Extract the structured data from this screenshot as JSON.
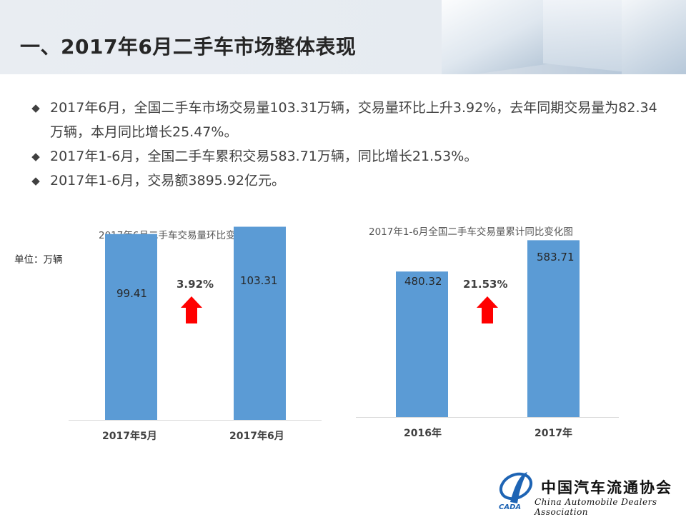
{
  "header": {
    "title": "一、2017年6月二手车市场整体表现"
  },
  "bullets": [
    {
      "text": "2017年6月，全国二手车市场交易量103.31万辆，交易量环比上升3.92%，去年同期交易量为82.34万辆，本月同比增长25.47%。"
    },
    {
      "text": "2017年1-6月，全国二手车累积交易583.71万辆，同比增长21.53%。"
    },
    {
      "text": "2017年1-6月，交易额3895.92亿元。"
    }
  ],
  "unit": "单位：万辆",
  "chart_data": [
    {
      "type": "bar",
      "title": "2017年6月二手车交易量环比变化图",
      "categories": [
        "2017年5月",
        "2017年6月"
      ],
      "values": [
        99.41,
        103.31
      ],
      "value_labels": [
        "99.41",
        "103.31"
      ],
      "change_label": "3.92%",
      "ylim": [
        0,
        110
      ],
      "color": "#5b9bd5",
      "arrow_color": "#ff0000"
    },
    {
      "type": "bar",
      "title": "2017年1-6月全国二手车交易量累计同比变化图",
      "categories": [
        "2016年",
        "2017年"
      ],
      "values": [
        480.32,
        583.71
      ],
      "value_labels": [
        "480.32",
        "583.71"
      ],
      "change_label": "21.53%",
      "ylim": [
        0,
        620
      ],
      "color": "#5b9bd5",
      "arrow_color": "#ff0000"
    }
  ],
  "logo": {
    "name_cn": "中国汽车流通协会",
    "name_en": "China Automobile Dealers Association",
    "abbr": "CADA"
  }
}
